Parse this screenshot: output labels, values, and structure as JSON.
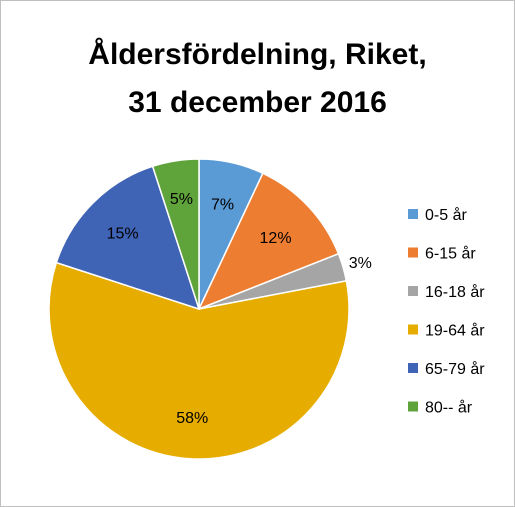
{
  "chart_data": {
    "type": "pie",
    "title_lines": [
      "Åldersfördelning, Riket,",
      "31 december 2016"
    ],
    "categories": [
      "0-5 år",
      "6-15 år",
      "16-18 år",
      "19-64 år",
      "65-79 år",
      "80-- år"
    ],
    "values": [
      7,
      12,
      3,
      58,
      15,
      5
    ],
    "data_labels": [
      "7%",
      "12%",
      "3%",
      "58%",
      "15%",
      "5%"
    ],
    "colors": [
      "#5b9bd5",
      "#ed7d31",
      "#a5a5a5",
      "#e6ad00",
      "#3f63b5",
      "#5fa33b"
    ],
    "legend_position": "right"
  }
}
